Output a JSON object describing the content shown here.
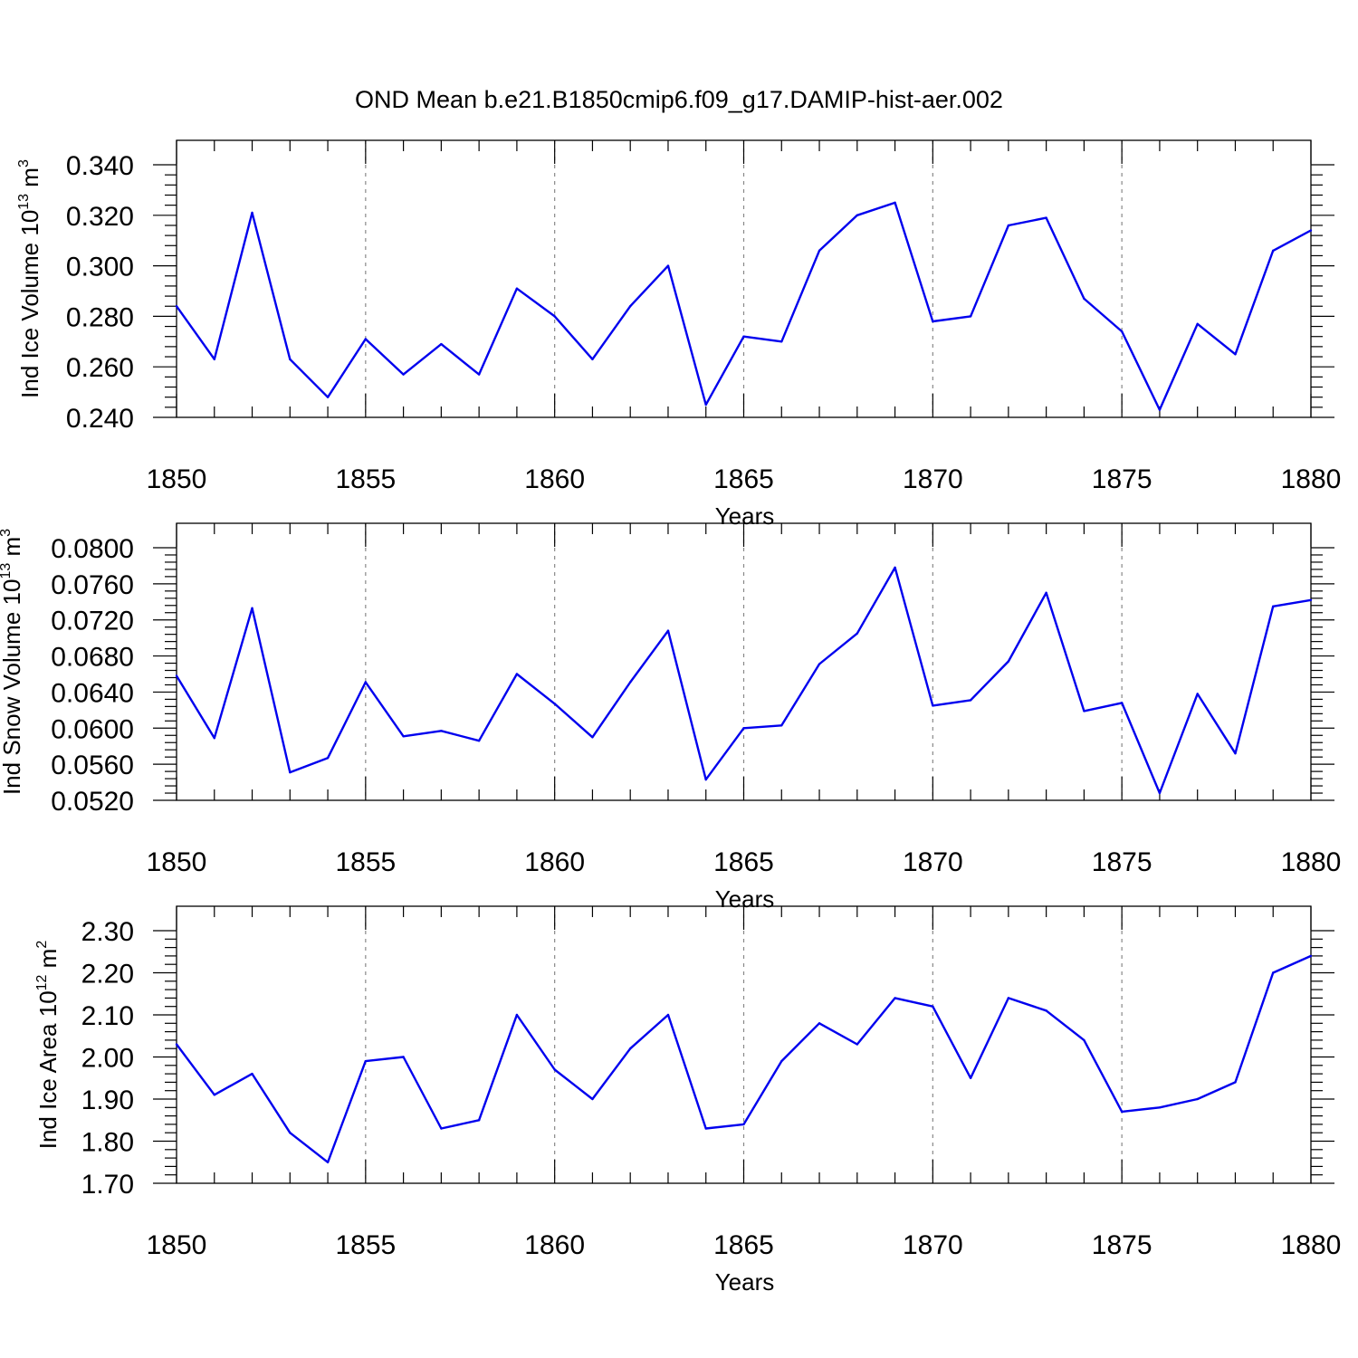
{
  "figure": {
    "title": "OND Mean b.e21.B1850cmip6.f09_g17.DAMIP-hist-aer.002",
    "line_color": "#0000ee"
  },
  "chart_data": [
    {
      "type": "line",
      "title": "",
      "xlabel": "Years",
      "ylabel_text": "Ind Ice Volume 10",
      "ylabel_exp": "13",
      "ylabel_unit": " m",
      "ylabel_unit_exp": "3",
      "xlim": [
        1850,
        1880
      ],
      "ylim": [
        0.24,
        0.34
      ],
      "x_ticks": [
        "1850",
        "1855",
        "1860",
        "1865",
        "1870",
        "1875",
        "1880"
      ],
      "y_ticks": [
        "0.240",
        "0.260",
        "0.280",
        "0.300",
        "0.320",
        "0.340"
      ],
      "grid": "vertical dashed at major x ticks",
      "x": [
        1850,
        1851,
        1852,
        1853,
        1854,
        1855,
        1856,
        1857,
        1858,
        1859,
        1860,
        1861,
        1862,
        1863,
        1864,
        1865,
        1866,
        1867,
        1868,
        1869,
        1870,
        1871,
        1872,
        1873,
        1874,
        1875,
        1876,
        1877,
        1878,
        1879,
        1880
      ],
      "values": [
        0.284,
        0.263,
        0.321,
        0.263,
        0.248,
        0.271,
        0.257,
        0.269,
        0.257,
        0.291,
        0.28,
        0.263,
        0.284,
        0.3,
        0.245,
        0.272,
        0.27,
        0.306,
        0.32,
        0.325,
        0.278,
        0.28,
        0.316,
        0.319,
        0.287,
        0.274,
        0.243,
        0.277,
        0.265,
        0.306,
        0.314
      ]
    },
    {
      "type": "line",
      "title": "",
      "xlabel": "Years",
      "ylabel_text": "Ind Snow Volume 10",
      "ylabel_exp": "13",
      "ylabel_unit": " m",
      "ylabel_unit_exp": "3",
      "xlim": [
        1850,
        1880
      ],
      "ylim": [
        0.052,
        0.08
      ],
      "x_ticks": [
        "1850",
        "1855",
        "1860",
        "1865",
        "1870",
        "1875",
        "1880"
      ],
      "y_ticks": [
        "0.0520",
        "0.0560",
        "0.0600",
        "0.0640",
        "0.0680",
        "0.0720",
        "0.0760",
        "0.0800"
      ],
      "grid": "vertical dashed at major x ticks",
      "x": [
        1850,
        1851,
        1852,
        1853,
        1854,
        1855,
        1856,
        1857,
        1858,
        1859,
        1860,
        1861,
        1862,
        1863,
        1864,
        1865,
        1866,
        1867,
        1868,
        1869,
        1870,
        1871,
        1872,
        1873,
        1874,
        1875,
        1876,
        1877,
        1878,
        1879,
        1880
      ],
      "values": [
        0.0658,
        0.0589,
        0.0733,
        0.0551,
        0.0567,
        0.0651,
        0.0591,
        0.0597,
        0.0586,
        0.066,
        0.0627,
        0.059,
        0.0651,
        0.0708,
        0.0543,
        0.06,
        0.0603,
        0.0671,
        0.0705,
        0.0778,
        0.0625,
        0.0631,
        0.0674,
        0.075,
        0.0619,
        0.0628,
        0.0528,
        0.0638,
        0.0572,
        0.0735,
        0.0742
      ]
    },
    {
      "type": "line",
      "title": "",
      "xlabel": "Years",
      "ylabel_text": "Ind Ice Area 10",
      "ylabel_exp": "12",
      "ylabel_unit": " m",
      "ylabel_unit_exp": "2",
      "xlim": [
        1850,
        1880
      ],
      "ylim": [
        1.7,
        2.3
      ],
      "x_ticks": [
        "1850",
        "1855",
        "1860",
        "1865",
        "1870",
        "1875",
        "1880"
      ],
      "y_ticks": [
        "1.70",
        "1.80",
        "1.90",
        "2.00",
        "2.10",
        "2.20",
        "2.30"
      ],
      "grid": "vertical dashed at major x ticks",
      "x": [
        1850,
        1851,
        1852,
        1853,
        1854,
        1855,
        1856,
        1857,
        1858,
        1859,
        1860,
        1861,
        1862,
        1863,
        1864,
        1865,
        1866,
        1867,
        1868,
        1869,
        1870,
        1871,
        1872,
        1873,
        1874,
        1875,
        1876,
        1877,
        1878,
        1879,
        1880
      ],
      "values": [
        2.03,
        1.91,
        1.96,
        1.82,
        1.75,
        1.99,
        2.0,
        1.83,
        1.85,
        2.1,
        1.97,
        1.9,
        2.02,
        2.1,
        1.83,
        1.84,
        1.99,
        2.08,
        2.03,
        2.14,
        2.12,
        1.95,
        2.14,
        2.11,
        2.04,
        1.87,
        1.88,
        1.9,
        1.94,
        2.2,
        2.24
      ]
    }
  ]
}
